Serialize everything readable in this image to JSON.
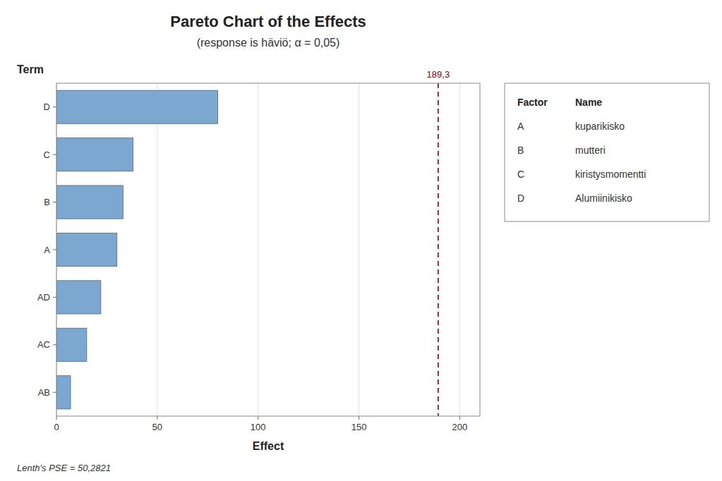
{
  "chart_data": {
    "type": "bar",
    "orientation": "horizontal",
    "title": "Pareto Chart of the Effects",
    "subtitle": "(response is häviö; α = 0,05)",
    "categories": [
      "D",
      "C",
      "B",
      "A",
      "AD",
      "AC",
      "AB"
    ],
    "values": [
      80,
      38,
      33,
      30,
      22,
      15,
      7
    ],
    "color": "#7ba7d0",
    "x_label": "Effect",
    "y_label": "Term",
    "xlim": [
      0,
      210
    ],
    "xticks": [
      0,
      50,
      100,
      150,
      200
    ],
    "grid": true,
    "reference_line": {
      "value": 189.3,
      "label": "189,3",
      "color": "#8b0000",
      "line_style": "dashed"
    },
    "factor_table": {
      "headers": [
        "Factor",
        "Name"
      ],
      "rows": [
        {
          "letter": "A",
          "name": "kuparikisko"
        },
        {
          "letter": "B",
          "name": "mutteri"
        },
        {
          "letter": "C",
          "name": "kiristysmomentti"
        },
        {
          "letter": "D",
          "name": "Alumiinikisko"
        }
      ]
    },
    "footnote": "Lenth's PSE = 50,2821"
  }
}
